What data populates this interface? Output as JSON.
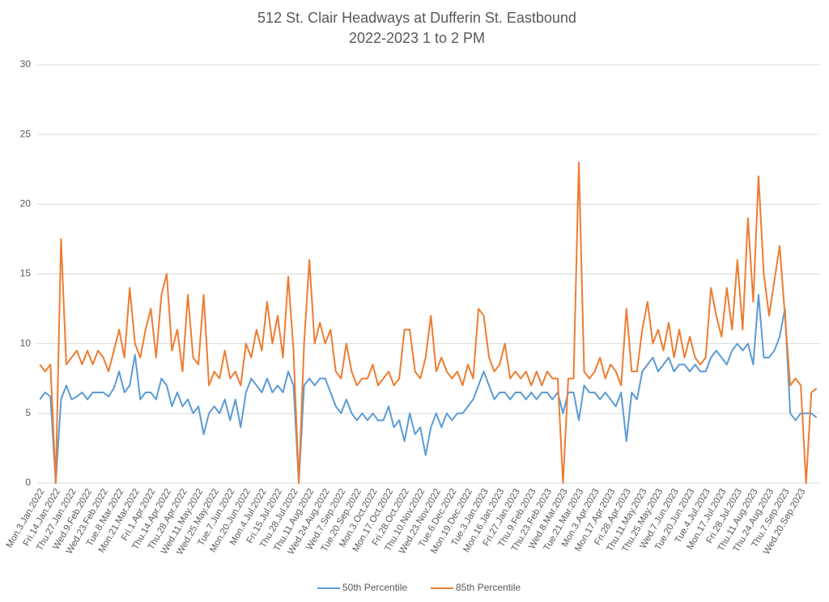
{
  "chart_data": {
    "type": "line",
    "title": "512 St. Clair Headways at Dufferin St. Eastbound",
    "subtitle": "2022-2023 1 to 2 PM",
    "categories": [
      "Mon.3.Jan.2022",
      null,
      null,
      "Fri.14.Jan.2022",
      null,
      null,
      "Thu.27.Jan.2022",
      null,
      null,
      "Wed.9.Feb.2022",
      null,
      null,
      "Wed.23.Feb.2022",
      null,
      null,
      "Tue.8.Mar.2022",
      null,
      null,
      "Mon.21.Mar.2022",
      null,
      null,
      "Fri.1.Apr.2022",
      null,
      null,
      "Thu.14.Apr.2022",
      null,
      null,
      "Thu.28.Apr.2022",
      null,
      null,
      "Wed.11.May.2022",
      null,
      null,
      "Wed.25.May.2022",
      null,
      null,
      "Tue.7.Jun.2022",
      null,
      null,
      "Mon.20.Jun.2022",
      null,
      null,
      "Mon.4.Jul.2022",
      null,
      null,
      "Fri.15.Jul.2022",
      null,
      null,
      "Thu.28.Jul.2022",
      null,
      null,
      "Thu.11.Aug.2022",
      null,
      null,
      "Wed.24.Aug.2022",
      null,
      null,
      "Wed.7.Sep.2022",
      null,
      null,
      "Tue.20.Sep.2022",
      null,
      null,
      "Mon.3.Oct.2022",
      null,
      null,
      "Mon.17.Oct.2022",
      null,
      null,
      "Fri.28.Oct.2022",
      null,
      null,
      "Thu.10.Nov.2022",
      null,
      null,
      "Wed.23.Nov.2022",
      null,
      null,
      "Tue.6.Dec.2022",
      null,
      null,
      "Mon.19.Dec.2022",
      null,
      null,
      "Tue.3.Jan.2023",
      null,
      null,
      "Mon.16.Jan.2023",
      null,
      null,
      "Fri.27.Jan.2023",
      null,
      null,
      "Thu.9.Feb.2023",
      null,
      null,
      "Thu.23.Feb.2023",
      null,
      null,
      "Wed.8.Mar.2023",
      null,
      null,
      "Tue.21.Mar.2023",
      null,
      null,
      "Mon.3.Apr.2023",
      null,
      null,
      "Mon.17.Apr.2023",
      null,
      null,
      "Fri.28.Apr.2023",
      null,
      null,
      "Thu.11.May.2023",
      null,
      null,
      "Thu.25.May.2023",
      null,
      null,
      "Wed.7.Jun.2023",
      null,
      null,
      "Tue.20.Jun.2023",
      null,
      null,
      "Tue.4.Jul.2023",
      null,
      null,
      "Mon.17.Jul.2023",
      null,
      null,
      "Fri.28.Jul.2023",
      null,
      null,
      "Thu.11.Aug.2023",
      null,
      null,
      "Thu.24.Aug.2023",
      null,
      null,
      "Thu.7.Sep.2023",
      null,
      null,
      "Wed.20.Sep.2023",
      null,
      null,
      null
    ],
    "series": [
      {
        "name": "50th Percentile",
        "color": "#5b9bd5",
        "values": [
          6.0,
          6.5,
          6.2,
          0,
          6.0,
          7.0,
          6.0,
          6.2,
          6.5,
          6.0,
          6.5,
          6.5,
          6.5,
          6.2,
          6.8,
          8.0,
          6.5,
          7.0,
          9.2,
          6.0,
          6.5,
          6.5,
          6.0,
          7.5,
          7.0,
          5.5,
          6.5,
          5.5,
          6.0,
          5.0,
          5.5,
          3.5,
          5.0,
          5.5,
          5.0,
          6.0,
          4.5,
          6.0,
          4.0,
          6.5,
          7.5,
          7.0,
          6.5,
          7.5,
          6.5,
          7.0,
          6.5,
          8.0,
          7.0,
          0,
          7.0,
          7.5,
          7.0,
          7.5,
          7.5,
          6.5,
          5.5,
          5.0,
          6.0,
          5.0,
          4.5,
          5.0,
          4.5,
          5.0,
          4.5,
          4.5,
          5.5,
          4.0,
          4.5,
          3.0,
          5.0,
          3.5,
          4.0,
          2.0,
          4.0,
          5.0,
          4.0,
          5.0,
          4.5,
          5.0,
          5.0,
          5.5,
          6.0,
          7.0,
          8.0,
          7.0,
          6.0,
          6.5,
          6.5,
          6.0,
          6.5,
          6.5,
          6.0,
          6.5,
          6.0,
          6.5,
          6.5,
          6.0,
          6.5,
          5.0,
          6.5,
          6.5,
          4.5,
          7.0,
          6.5,
          6.5,
          6.0,
          6.5,
          6.0,
          5.5,
          6.5,
          3.0,
          6.5,
          6.0,
          8.0,
          8.5,
          9.0,
          8.0,
          8.5,
          9.0,
          8.0,
          8.5,
          8.5,
          8.0,
          8.5,
          8.0,
          8.0,
          9.0,
          9.5,
          9.0,
          8.5,
          9.5,
          10.0,
          9.5,
          10.0,
          8.5,
          13.5,
          9.0,
          9.0,
          9.5,
          10.5,
          12.5,
          5.0,
          4.5,
          5.0,
          5.0,
          5.0,
          4.7
        ]
      },
      {
        "name": "85th Percentile",
        "color": "#ed7d31",
        "values": [
          8.5,
          8.0,
          8.5,
          0,
          17.5,
          8.5,
          9.0,
          9.5,
          8.5,
          9.5,
          8.5,
          9.5,
          9.0,
          8.0,
          9.5,
          11.0,
          9.0,
          14.0,
          10.0,
          9.0,
          11.0,
          12.5,
          9.0,
          13.5,
          15.0,
          9.5,
          11.0,
          8.0,
          13.5,
          9.0,
          8.5,
          13.5,
          7.0,
          8.0,
          7.5,
          9.5,
          7.5,
          8.0,
          7.0,
          10.0,
          9.0,
          11.0,
          9.5,
          13.0,
          10.0,
          12.0,
          9.0,
          14.8,
          9.5,
          0,
          10.0,
          16.0,
          10.0,
          11.5,
          10.0,
          11.0,
          8.0,
          7.5,
          10.0,
          8.0,
          7.0,
          7.5,
          7.5,
          8.5,
          7.0,
          7.5,
          8.0,
          7.0,
          7.5,
          11.0,
          11.0,
          8.0,
          7.5,
          9.0,
          12.0,
          8.0,
          9.0,
          8.0,
          7.5,
          8.0,
          7.0,
          8.5,
          7.5,
          12.5,
          12.0,
          9.0,
          8.0,
          8.5,
          10.0,
          7.5,
          8.0,
          7.5,
          8.0,
          7.0,
          8.0,
          7.0,
          8.0,
          7.5,
          7.5,
          0,
          7.5,
          7.5,
          23.0,
          8.0,
          7.5,
          8.0,
          9.0,
          7.5,
          8.5,
          8.0,
          7.0,
          12.5,
          8.0,
          8.0,
          11.0,
          13.0,
          10.0,
          11.0,
          9.5,
          11.5,
          9.0,
          11.0,
          9.0,
          10.5,
          9.0,
          8.5,
          9.0,
          14.0,
          12.0,
          10.5,
          14.0,
          11.0,
          16.0,
          11.0,
          19.0,
          13.0,
          22.0,
          15.0,
          12.0,
          14.5,
          17.0,
          12.0,
          7.0,
          7.5,
          7.0,
          0,
          6.5,
          6.8
        ]
      }
    ],
    "ylim": [
      0,
      30
    ],
    "yticks": [
      0,
      5,
      10,
      15,
      20,
      25,
      30
    ],
    "grid": true,
    "legend": "bottom"
  }
}
